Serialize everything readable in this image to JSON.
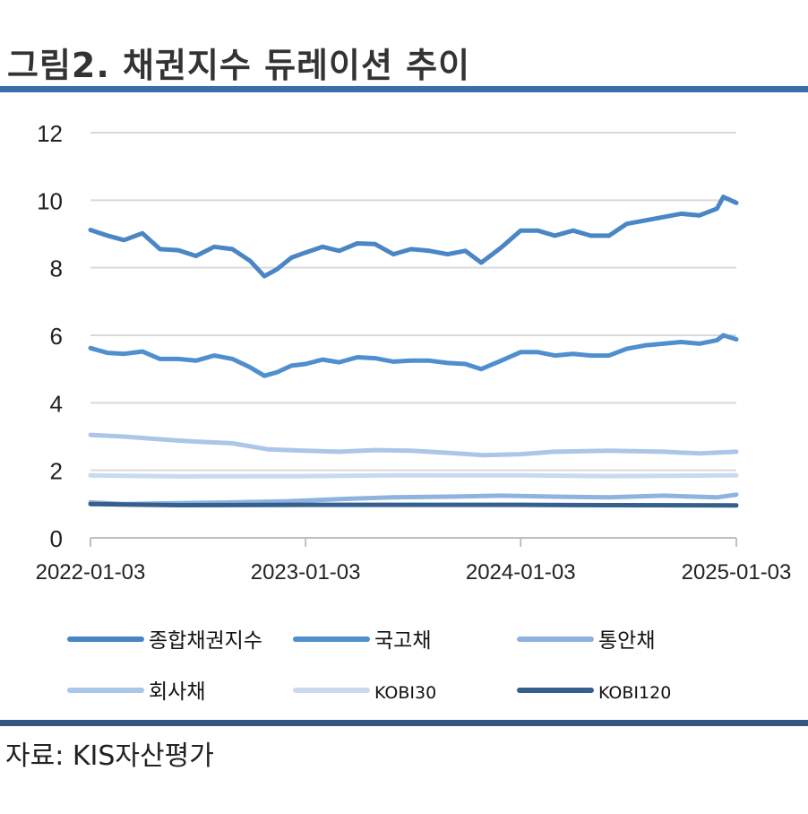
{
  "title": "그림2. 채권지수 듀레이션 추이",
  "source": "자료: KIS자산평가",
  "colors": {
    "header_rule": "#3a6ea8",
    "footer_rule": "#34587f",
    "grid": "#d9d9d9"
  },
  "chart_data": {
    "type": "line",
    "title": "",
    "xlabel": "",
    "ylabel": "",
    "ylim": [
      0,
      12
    ],
    "yticks": [
      "0",
      "2",
      "4",
      "6",
      "8",
      "10",
      "12"
    ],
    "xticks": [
      "2022-01-03",
      "2023-01-03",
      "2024-01-03",
      "2025-01-03"
    ],
    "x_range": [
      "2022-01-03",
      "2025-01-03"
    ],
    "grid": true,
    "legend_position": "bottom",
    "series": [
      {
        "name": "종합채권지수",
        "color": "#4a86c5",
        "points": [
          [
            "2022-01-03",
            9.12
          ],
          [
            "2022-02-01",
            8.95
          ],
          [
            "2022-03-01",
            8.82
          ],
          [
            "2022-04-01",
            9.02
          ],
          [
            "2022-05-01",
            8.55
          ],
          [
            "2022-06-01",
            8.52
          ],
          [
            "2022-07-01",
            8.35
          ],
          [
            "2022-08-01",
            8.62
          ],
          [
            "2022-09-01",
            8.55
          ],
          [
            "2022-10-01",
            8.2
          ],
          [
            "2022-10-25",
            7.75
          ],
          [
            "2022-11-15",
            7.95
          ],
          [
            "2022-12-10",
            8.3
          ],
          [
            "2023-01-03",
            8.45
          ],
          [
            "2023-02-01",
            8.62
          ],
          [
            "2023-03-01",
            8.5
          ],
          [
            "2023-04-01",
            8.72
          ],
          [
            "2023-05-01",
            8.7
          ],
          [
            "2023-06-01",
            8.4
          ],
          [
            "2023-07-01",
            8.55
          ],
          [
            "2023-08-01",
            8.5
          ],
          [
            "2023-09-01",
            8.4
          ],
          [
            "2023-10-01",
            8.5
          ],
          [
            "2023-10-28",
            8.15
          ],
          [
            "2023-12-01",
            8.6
          ],
          [
            "2024-01-03",
            9.1
          ],
          [
            "2024-02-01",
            9.1
          ],
          [
            "2024-03-01",
            8.95
          ],
          [
            "2024-04-01",
            9.1
          ],
          [
            "2024-05-01",
            8.95
          ],
          [
            "2024-06-01",
            8.95
          ],
          [
            "2024-07-01",
            9.3
          ],
          [
            "2024-08-01",
            9.4
          ],
          [
            "2024-09-01",
            9.5
          ],
          [
            "2024-10-01",
            9.6
          ],
          [
            "2024-11-01",
            9.55
          ],
          [
            "2024-12-01",
            9.75
          ],
          [
            "2024-12-12",
            10.1
          ],
          [
            "2025-01-03",
            9.92
          ]
        ]
      },
      {
        "name": "국고채",
        "color": "#4f8fcf",
        "points": [
          [
            "2022-01-03",
            5.62
          ],
          [
            "2022-02-01",
            5.48
          ],
          [
            "2022-03-01",
            5.45
          ],
          [
            "2022-04-01",
            5.52
          ],
          [
            "2022-05-01",
            5.3
          ],
          [
            "2022-06-01",
            5.3
          ],
          [
            "2022-07-01",
            5.25
          ],
          [
            "2022-08-01",
            5.4
          ],
          [
            "2022-09-01",
            5.3
          ],
          [
            "2022-10-01",
            5.05
          ],
          [
            "2022-10-25",
            4.8
          ],
          [
            "2022-11-15",
            4.9
          ],
          [
            "2022-12-10",
            5.1
          ],
          [
            "2023-01-03",
            5.15
          ],
          [
            "2023-02-01",
            5.28
          ],
          [
            "2023-03-01",
            5.2
          ],
          [
            "2023-04-01",
            5.35
          ],
          [
            "2023-05-01",
            5.32
          ],
          [
            "2023-06-01",
            5.22
          ],
          [
            "2023-07-01",
            5.25
          ],
          [
            "2023-08-01",
            5.25
          ],
          [
            "2023-09-01",
            5.18
          ],
          [
            "2023-10-01",
            5.15
          ],
          [
            "2023-10-28",
            5.0
          ],
          [
            "2023-12-01",
            5.25
          ],
          [
            "2024-01-03",
            5.5
          ],
          [
            "2024-02-01",
            5.5
          ],
          [
            "2024-03-01",
            5.4
          ],
          [
            "2024-04-01",
            5.45
          ],
          [
            "2024-05-01",
            5.4
          ],
          [
            "2024-06-01",
            5.4
          ],
          [
            "2024-07-01",
            5.6
          ],
          [
            "2024-08-01",
            5.7
          ],
          [
            "2024-09-01",
            5.75
          ],
          [
            "2024-10-01",
            5.8
          ],
          [
            "2024-11-01",
            5.75
          ],
          [
            "2024-12-01",
            5.85
          ],
          [
            "2024-12-12",
            6.0
          ],
          [
            "2025-01-03",
            5.88
          ]
        ]
      },
      {
        "name": "통안채",
        "color": "#8fb3df",
        "points": [
          [
            "2022-01-03",
            1.05
          ],
          [
            "2022-03-01",
            1.0
          ],
          [
            "2022-06-01",
            1.03
          ],
          [
            "2022-09-01",
            1.05
          ],
          [
            "2022-12-01",
            1.08
          ],
          [
            "2023-03-01",
            1.15
          ],
          [
            "2023-06-01",
            1.2
          ],
          [
            "2023-09-01",
            1.22
          ],
          [
            "2023-12-01",
            1.25
          ],
          [
            "2024-03-01",
            1.22
          ],
          [
            "2024-06-01",
            1.2
          ],
          [
            "2024-09-01",
            1.25
          ],
          [
            "2024-12-01",
            1.2
          ],
          [
            "2025-01-03",
            1.28
          ]
        ]
      },
      {
        "name": "회사채",
        "color": "#aac6e8",
        "points": [
          [
            "2022-01-03",
            3.05
          ],
          [
            "2022-03-01",
            3.0
          ],
          [
            "2022-05-01",
            2.92
          ],
          [
            "2022-07-01",
            2.85
          ],
          [
            "2022-09-01",
            2.8
          ],
          [
            "2022-11-01",
            2.62
          ],
          [
            "2023-01-03",
            2.58
          ],
          [
            "2023-03-01",
            2.55
          ],
          [
            "2023-05-01",
            2.6
          ],
          [
            "2023-07-01",
            2.58
          ],
          [
            "2023-09-01",
            2.52
          ],
          [
            "2023-11-01",
            2.45
          ],
          [
            "2024-01-03",
            2.48
          ],
          [
            "2024-03-01",
            2.55
          ],
          [
            "2024-06-01",
            2.58
          ],
          [
            "2024-09-01",
            2.55
          ],
          [
            "2024-11-01",
            2.5
          ],
          [
            "2025-01-03",
            2.55
          ]
        ]
      },
      {
        "name": "KOBI30",
        "color": "#c8d9f0",
        "points": [
          [
            "2022-01-03",
            1.85
          ],
          [
            "2022-06-01",
            1.82
          ],
          [
            "2023-01-03",
            1.83
          ],
          [
            "2023-06-01",
            1.85
          ],
          [
            "2024-01-03",
            1.85
          ],
          [
            "2024-06-01",
            1.83
          ],
          [
            "2025-01-03",
            1.85
          ]
        ]
      },
      {
        "name": "KOBI120",
        "color": "#355f8c",
        "points": [
          [
            "2022-01-03",
            1.0
          ],
          [
            "2022-06-01",
            0.97
          ],
          [
            "2023-01-03",
            0.98
          ],
          [
            "2023-06-01",
            0.98
          ],
          [
            "2024-01-03",
            0.98
          ],
          [
            "2024-06-01",
            0.97
          ],
          [
            "2025-01-03",
            0.96
          ]
        ]
      }
    ]
  }
}
